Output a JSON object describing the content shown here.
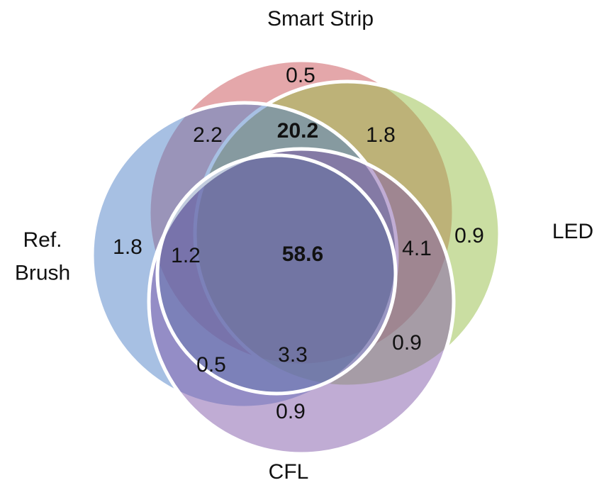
{
  "sets": [
    {
      "label": "Smart Strip"
    },
    {
      "label": "LED"
    },
    {
      "label": "Ref. Brush"
    },
    {
      "label": "CFL"
    }
  ],
  "regions": [
    {
      "label": "0.5"
    },
    {
      "label": "2.2"
    },
    {
      "label": "20.2"
    },
    {
      "label": "1.8"
    },
    {
      "label": "1.8"
    },
    {
      "label": "1.2"
    },
    {
      "label": "58.6"
    },
    {
      "label": "4.1"
    },
    {
      "label": "0.9"
    },
    {
      "label": "0.9"
    },
    {
      "label": "0.5"
    },
    {
      "label": "3.3"
    },
    {
      "label": "0.9"
    }
  ]
}
